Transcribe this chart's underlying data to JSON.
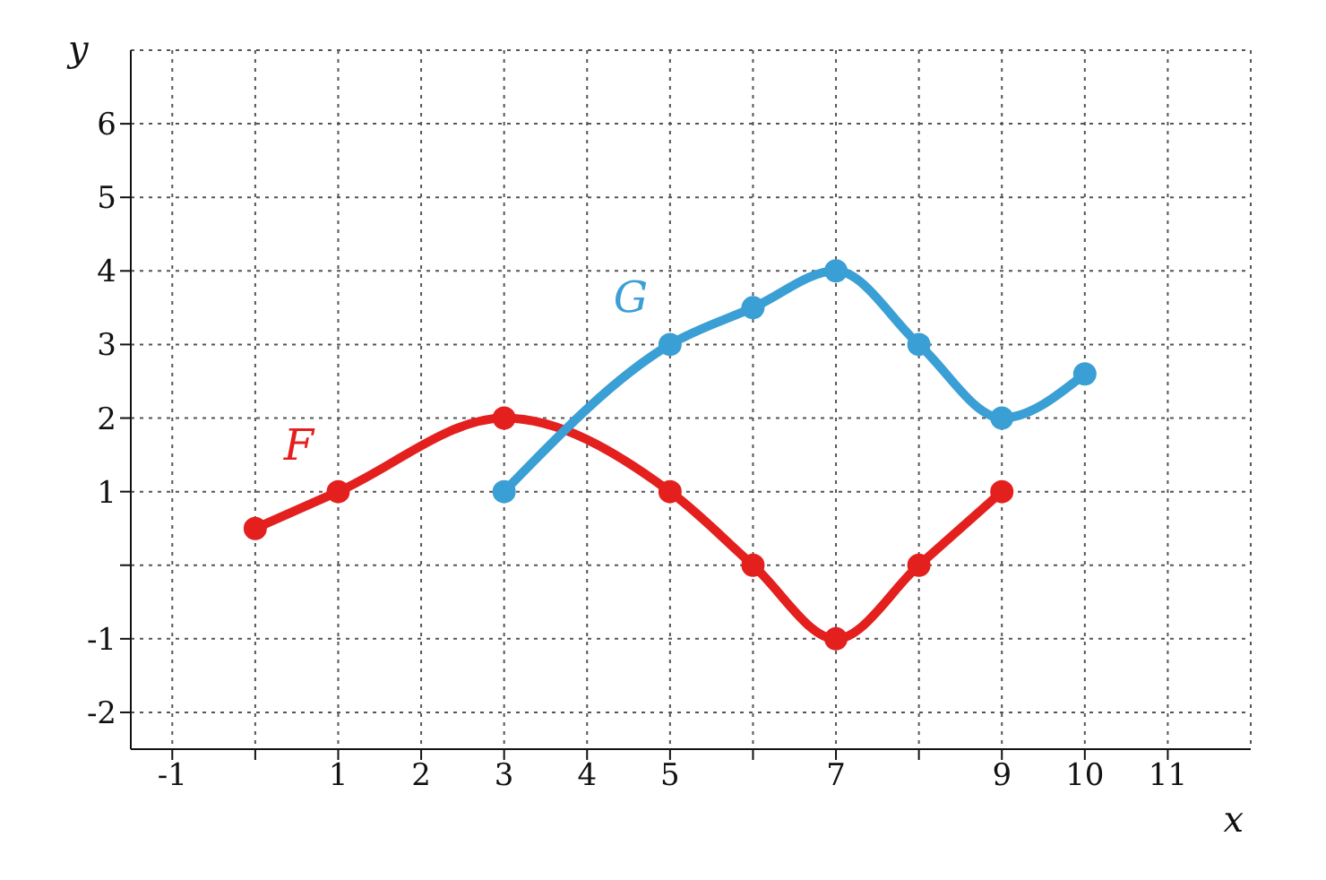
{
  "chart_data": {
    "type": "line",
    "xlabel": "x",
    "ylabel": "y",
    "xlim": [
      -1.5,
      12
    ],
    "ylim": [
      -2.5,
      7
    ],
    "xticks": [
      -1,
      {
        "value": 0,
        "label": null
      },
      1,
      2,
      3,
      4,
      5,
      {
        "value": 6,
        "label": null
      },
      7,
      {
        "value": 8,
        "label": null
      },
      9,
      10,
      11
    ],
    "yticks": [
      -2,
      -1,
      {
        "value": 0,
        "label": null
      },
      1,
      2,
      3,
      4,
      5,
      6
    ],
    "grid": true,
    "marker": "circle",
    "line_style": "solid",
    "legend": false,
    "series": [
      {
        "name": "F",
        "color": "#e3201e",
        "x": [
          0,
          1,
          3,
          5,
          6,
          7,
          8,
          9
        ],
        "values": [
          0.5,
          1,
          2,
          1,
          0,
          -1,
          0,
          1
        ]
      },
      {
        "name": "G",
        "color": "#3a9fd4",
        "x": [
          3,
          5,
          6,
          7,
          8,
          9,
          10
        ],
        "values": [
          1,
          3,
          3.5,
          4,
          3,
          2,
          2.6
        ]
      }
    ]
  }
}
